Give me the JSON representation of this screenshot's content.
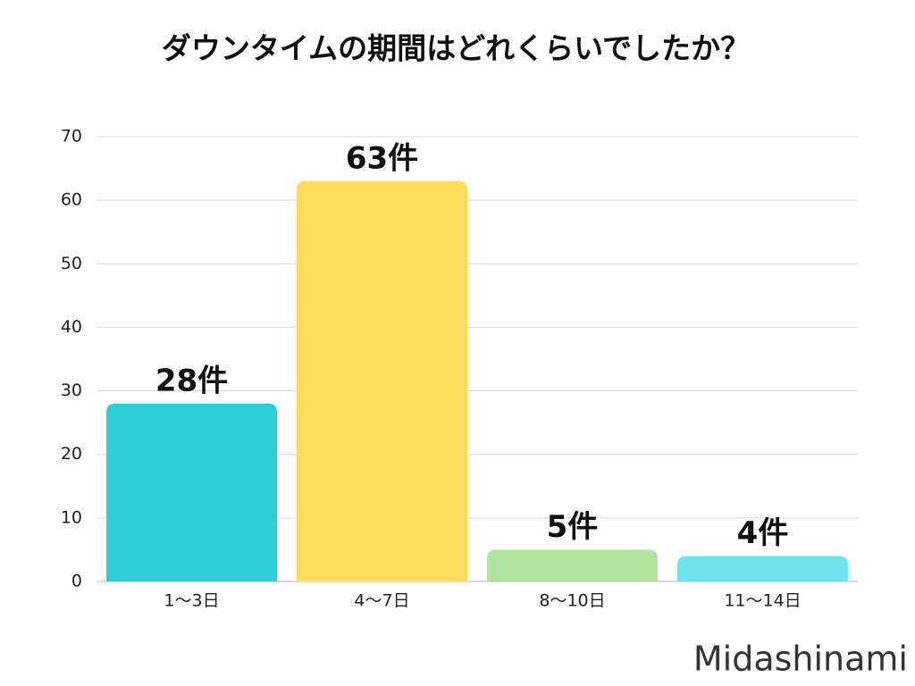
{
  "chart_data": {
    "type": "bar",
    "title": "ダウンタイムの期間はどれくらいでしたか？",
    "categories": [
      "1〜3日",
      "4〜7日",
      "8〜10日",
      "11〜14日"
    ],
    "values": [
      28,
      63,
      5,
      4
    ],
    "value_labels": [
      "28件",
      "63件",
      "5件",
      "4件"
    ],
    "colors": [
      "#2ecfd4",
      "#fddc5c",
      "#b1e29e",
      "#6ee3e8"
    ],
    "ylim": [
      0,
      70
    ],
    "yticks": [
      0,
      10,
      20,
      30,
      40,
      50,
      60,
      70
    ],
    "grid": true,
    "watermark": "Midashinami"
  }
}
